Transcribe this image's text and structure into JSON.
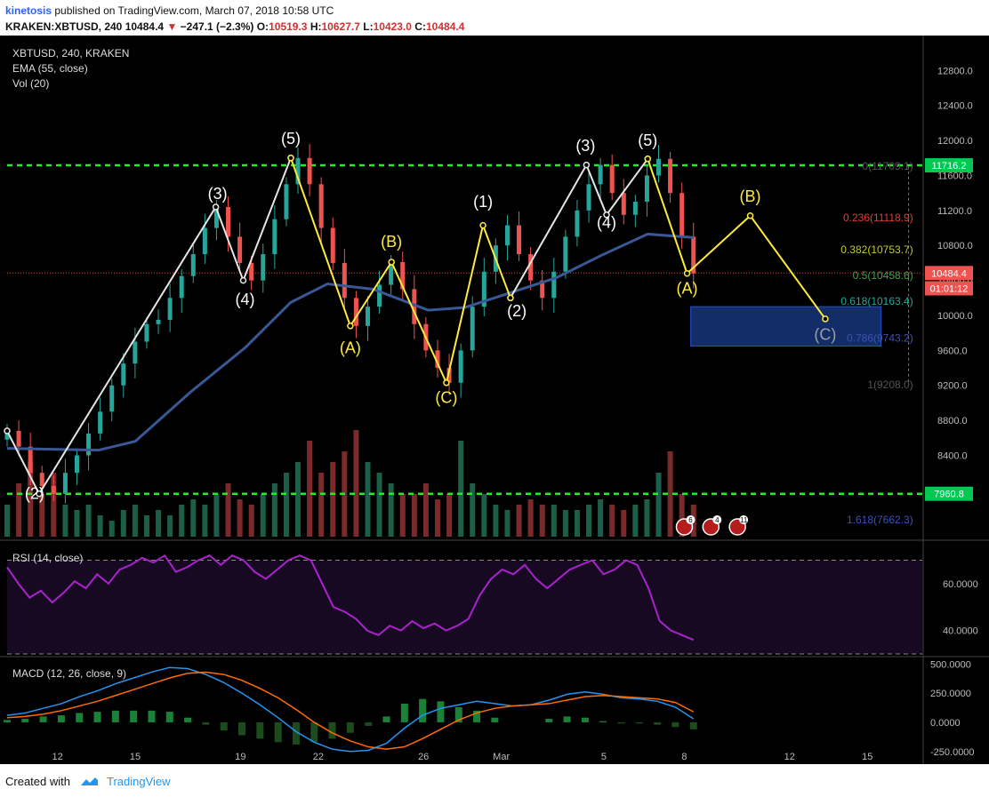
{
  "header": {
    "author": "kinetosis",
    "published": "published on TradingView.com, March 07, 2018 10:58 UTC",
    "symbol": "KRAKEN:XBTUSD, 240",
    "last": "10484.4",
    "change": "−247.1 (−2.3%)",
    "o_label": "O:",
    "o": "10519.3",
    "h_label": "H:",
    "h": "10627.7",
    "l_label": "L:",
    "l": "10423.0",
    "c_label": "C:",
    "c": "10484.4"
  },
  "footer": {
    "created": "Created with",
    "brand": "TradingView"
  },
  "colors": {
    "bull": "#26a69a",
    "bear": "#ef5350",
    "ema": "#3a5896",
    "wave": "#e6e6e6",
    "corr": "#ffeb3b",
    "level": "#22ee22",
    "rsi": "#aa22cc",
    "macd": "#2196f3",
    "signal": "#ff6d00"
  },
  "chart_data": [
    {
      "type": "line",
      "title": "XBTUSD, 240, KRAKEN",
      "legend": [
        "EMA (55, close)",
        "Vol (20)"
      ],
      "ylim": [
        7450,
        13200
      ],
      "ticks_y": [
        "12800.0",
        "12400.0",
        "12000.0",
        "11600.0",
        "11200.0",
        "10800.0",
        "10400.0",
        "10000.0",
        "9600.0",
        "9200.0",
        "8800.0",
        "8400.0",
        "8000.0"
      ],
      "ticks_x": [
        "12",
        "15",
        "19",
        "22",
        "26",
        "Mar",
        "5",
        "8",
        "12",
        "15"
      ],
      "price_tags": [
        {
          "label": "11716.2",
          "value": 11716.2,
          "color": "#00c853"
        },
        {
          "label": "10484.4",
          "value": 10484.4,
          "color": "#ef5350"
        },
        {
          "label": "01:01:12",
          "value": 10310,
          "color": "#ef5350"
        },
        {
          "label": "7960.8",
          "value": 7960.8,
          "color": "#00c853"
        }
      ],
      "hlines": [
        11716.2,
        7960.8
      ],
      "fib": [
        {
          "label": "0(11709.1)",
          "value": 11709.1,
          "color": "#555555"
        },
        {
          "label": "0.236(11118.9)",
          "value": 11118.9,
          "color": "#e53935"
        },
        {
          "label": "0.382(10753.7)",
          "value": 10753.7,
          "color": "#c0ca33"
        },
        {
          "label": "0.5(10458.6)",
          "value": 10458.6,
          "color": "#43a047"
        },
        {
          "label": "0.618(10163.4)",
          "value": 10163.4,
          "color": "#26a69a"
        },
        {
          "label": "0.786(9743.2)",
          "value": 9743.2,
          "color": "#3f51b5"
        },
        {
          "label": "1(9208.0)",
          "value": 9208.0,
          "color": "#555555"
        },
        {
          "label": "1.618(7662.3)",
          "value": 7662.3,
          "color": "#3f51b5"
        }
      ],
      "wave_labels": [
        {
          "text": "(2)",
          "x": 0.03,
          "y": 7900,
          "color": "white"
        },
        {
          "text": "(3)",
          "x": 0.23,
          "y": 11330,
          "color": "white"
        },
        {
          "text": "(4)",
          "x": 0.26,
          "y": 10120,
          "color": "white"
        },
        {
          "text": "(5)",
          "x": 0.31,
          "y": 11960,
          "color": "white"
        },
        {
          "text": "(A)",
          "x": 0.375,
          "y": 9570,
          "color": "yellow"
        },
        {
          "text": "(B)",
          "x": 0.42,
          "y": 10780,
          "color": "yellow"
        },
        {
          "text": "(C)",
          "x": 0.48,
          "y": 9000,
          "color": "yellow"
        },
        {
          "text": "(1)",
          "x": 0.52,
          "y": 11240,
          "color": "white"
        },
        {
          "text": "(2)",
          "x": 0.557,
          "y": 9990,
          "color": "white"
        },
        {
          "text": "(3)",
          "x": 0.632,
          "y": 11880,
          "color": "white"
        },
        {
          "text": "(4)",
          "x": 0.655,
          "y": 11000,
          "color": "white"
        },
        {
          "text": "(5)",
          "x": 0.7,
          "y": 11940,
          "color": "white"
        },
        {
          "text": "(A)",
          "x": 0.743,
          "y": 10250,
          "color": "yellow"
        },
        {
          "text": "(B)",
          "x": 0.812,
          "y": 11300,
          "color": "yellow"
        },
        {
          "text": "(C)",
          "x": 0.894,
          "y": 9720,
          "color": "gray"
        }
      ],
      "wave_path": [
        [
          0.0,
          8680
        ],
        [
          0.035,
          7960
        ],
        [
          0.228,
          11240
        ],
        [
          0.258,
          10400
        ],
        [
          0.31,
          11800
        ]
      ],
      "wave_path2": [
        [
          0.55,
          10200
        ],
        [
          0.633,
          11720
        ],
        [
          0.655,
          11150
        ],
        [
          0.7,
          11790
        ]
      ],
      "corr_path": [
        [
          0.31,
          11800
        ],
        [
          0.375,
          9880
        ],
        [
          0.42,
          10610
        ],
        [
          0.48,
          9230
        ],
        [
          0.52,
          11030
        ],
        [
          0.55,
          10200
        ]
      ],
      "proj_path": [
        [
          0.7,
          11790
        ],
        [
          0.743,
          10480
        ],
        [
          0.812,
          11140
        ],
        [
          0.894,
          9960
        ]
      ],
      "ema": [
        [
          0.0,
          8480
        ],
        [
          0.1,
          8460
        ],
        [
          0.14,
          8560
        ],
        [
          0.2,
          9120
        ],
        [
          0.26,
          9630
        ],
        [
          0.31,
          10150
        ],
        [
          0.35,
          10360
        ],
        [
          0.4,
          10300
        ],
        [
          0.46,
          10060
        ],
        [
          0.5,
          10090
        ],
        [
          0.55,
          10260
        ],
        [
          0.6,
          10430
        ],
        [
          0.65,
          10690
        ],
        [
          0.7,
          10930
        ],
        [
          0.75,
          10890
        ]
      ],
      "price": [
        8680,
        8500,
        8200,
        8050,
        7960,
        8200,
        8400,
        8650,
        8900,
        9200,
        9450,
        9700,
        9900,
        9950,
        10200,
        10450,
        10700,
        11000,
        11240,
        10900,
        10600,
        10400,
        10700,
        11100,
        11500,
        11800,
        11500,
        11000,
        10600,
        10200,
        9880,
        10100,
        10350,
        10610,
        10300,
        9900,
        9600,
        9400,
        9230,
        9600,
        10100,
        10500,
        10800,
        11030,
        10700,
        10400,
        10200,
        10500,
        10900,
        11200,
        11500,
        11720,
        11400,
        11150,
        11300,
        11600,
        11790,
        11400,
        10900,
        10480
      ],
      "volume": [
        0.3,
        0.5,
        0.7,
        0.4,
        0.6,
        0.3,
        0.25,
        0.3,
        0.2,
        0.15,
        0.25,
        0.3,
        0.2,
        0.25,
        0.2,
        0.3,
        0.35,
        0.3,
        0.4,
        0.5,
        0.35,
        0.3,
        0.4,
        0.5,
        0.6,
        0.7,
        0.9,
        0.6,
        0.7,
        0.8,
        1.0,
        0.7,
        0.6,
        0.5,
        0.4,
        0.4,
        0.5,
        0.35,
        0.4,
        0.9,
        0.5,
        0.4,
        0.3,
        0.25,
        0.3,
        0.35,
        0.3,
        0.3,
        0.25,
        0.25,
        0.3,
        0.35,
        0.3,
        0.25,
        0.3,
        0.35,
        0.6,
        0.8,
        0.4,
        0.3
      ],
      "target_box": {
        "x0": 0.747,
        "x1": 0.955,
        "y0": 10100,
        "y1": 9650
      }
    },
    {
      "type": "line",
      "title": "RSI (14, close)",
      "ylim": [
        30,
        77
      ],
      "ticks_y": [
        "60.0000",
        "40.0000"
      ],
      "bands": [
        70,
        30
      ],
      "values": [
        67,
        60,
        54,
        57,
        52,
        56,
        61,
        58,
        64,
        60,
        66,
        68,
        71,
        69,
        72,
        65,
        67,
        70,
        72,
        68,
        72,
        70,
        65,
        62,
        66,
        70,
        72,
        70,
        60,
        50,
        48,
        45,
        40,
        38,
        42,
        40,
        44,
        41,
        43,
        40,
        42,
        45,
        55,
        62,
        66,
        64,
        68,
        62,
        58,
        62,
        66,
        68,
        70,
        64,
        66,
        70,
        68,
        58,
        44,
        40,
        38,
        36
      ]
    },
    {
      "type": "line",
      "title": "MACD (12, 26, close, 9)",
      "ylim": [
        -320,
        540
      ],
      "ticks_y": [
        "500.0000",
        "250.0000",
        "0.0000",
        "-250.0000"
      ],
      "macd": [
        60,
        80,
        120,
        160,
        220,
        270,
        330,
        380,
        430,
        470,
        460,
        410,
        340,
        250,
        150,
        40,
        -80,
        -170,
        -230,
        -250,
        -240,
        -180,
        -50,
        60,
        120,
        150,
        180,
        160,
        140,
        150,
        190,
        240,
        260,
        240,
        210,
        200,
        180,
        130,
        30
      ],
      "signal": [
        40,
        50,
        70,
        100,
        140,
        180,
        230,
        280,
        330,
        380,
        420,
        430,
        410,
        360,
        290,
        210,
        110,
        0,
        -90,
        -160,
        -210,
        -230,
        -210,
        -140,
        -60,
        20,
        80,
        120,
        140,
        150,
        160,
        190,
        220,
        230,
        220,
        210,
        200,
        170,
        90
      ]
    }
  ]
}
